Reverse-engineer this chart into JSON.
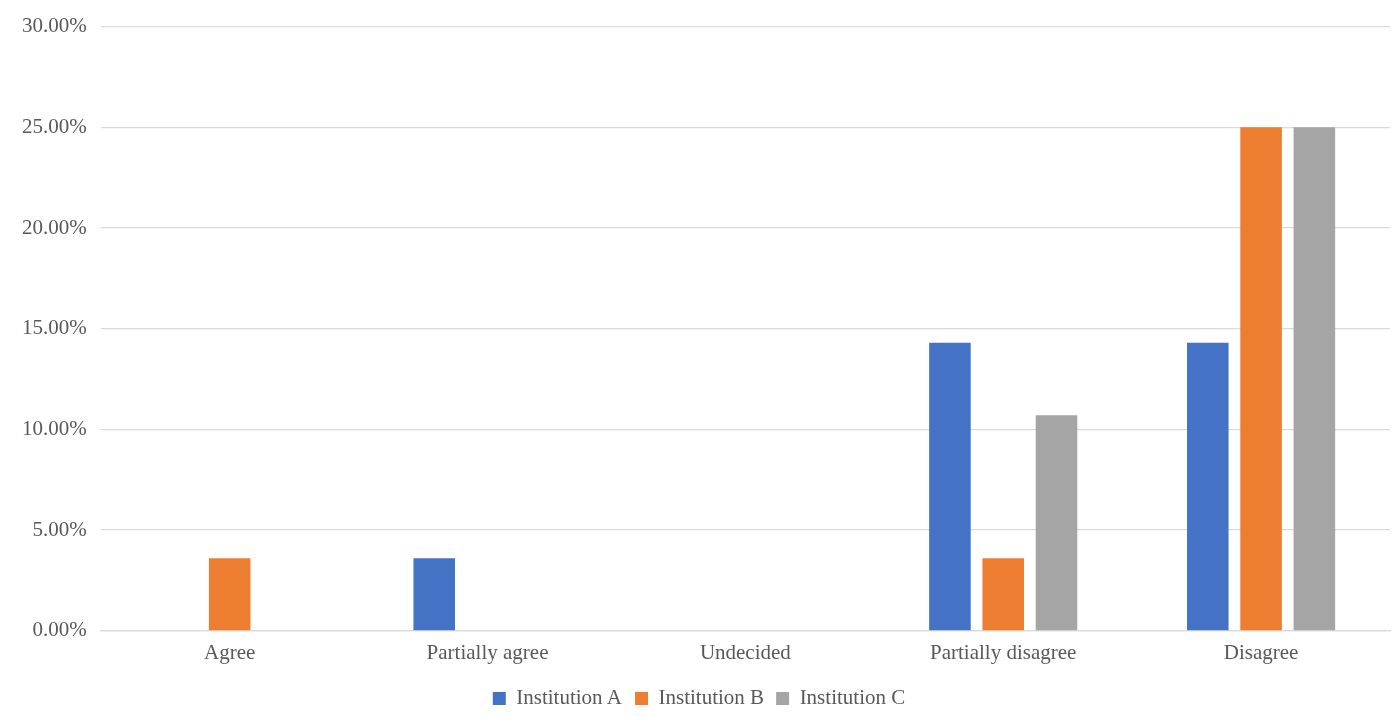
{
  "chart_data": {
    "type": "bar",
    "categories": [
      "Agree",
      "Partially agree",
      "Undecided",
      "Partially disagree",
      "Disagree"
    ],
    "series": [
      {
        "name": "Institution A",
        "color": "#4472c4",
        "values": [
          0,
          3.6,
          0,
          14.3,
          14.3
        ]
      },
      {
        "name": "Institution B",
        "color": "#ed7d31",
        "values": [
          3.6,
          0,
          0,
          3.6,
          25
        ]
      },
      {
        "name": "Institution C",
        "color": "#a5a5a5",
        "values": [
          0,
          0,
          0,
          10.7,
          25
        ]
      }
    ],
    "ylim": [
      0,
      30
    ],
    "yticks": [
      {
        "value": 0,
        "label": "0.00%"
      },
      {
        "value": 5,
        "label": "5.00%"
      },
      {
        "value": 10,
        "label": "10.00%"
      },
      {
        "value": 15,
        "label": "15.00%"
      },
      {
        "value": 20,
        "label": "20.00%"
      },
      {
        "value": 25,
        "label": "25.00%"
      },
      {
        "value": 30,
        "label": "30.00%"
      }
    ],
    "grid": "y",
    "legend": "bottom"
  }
}
